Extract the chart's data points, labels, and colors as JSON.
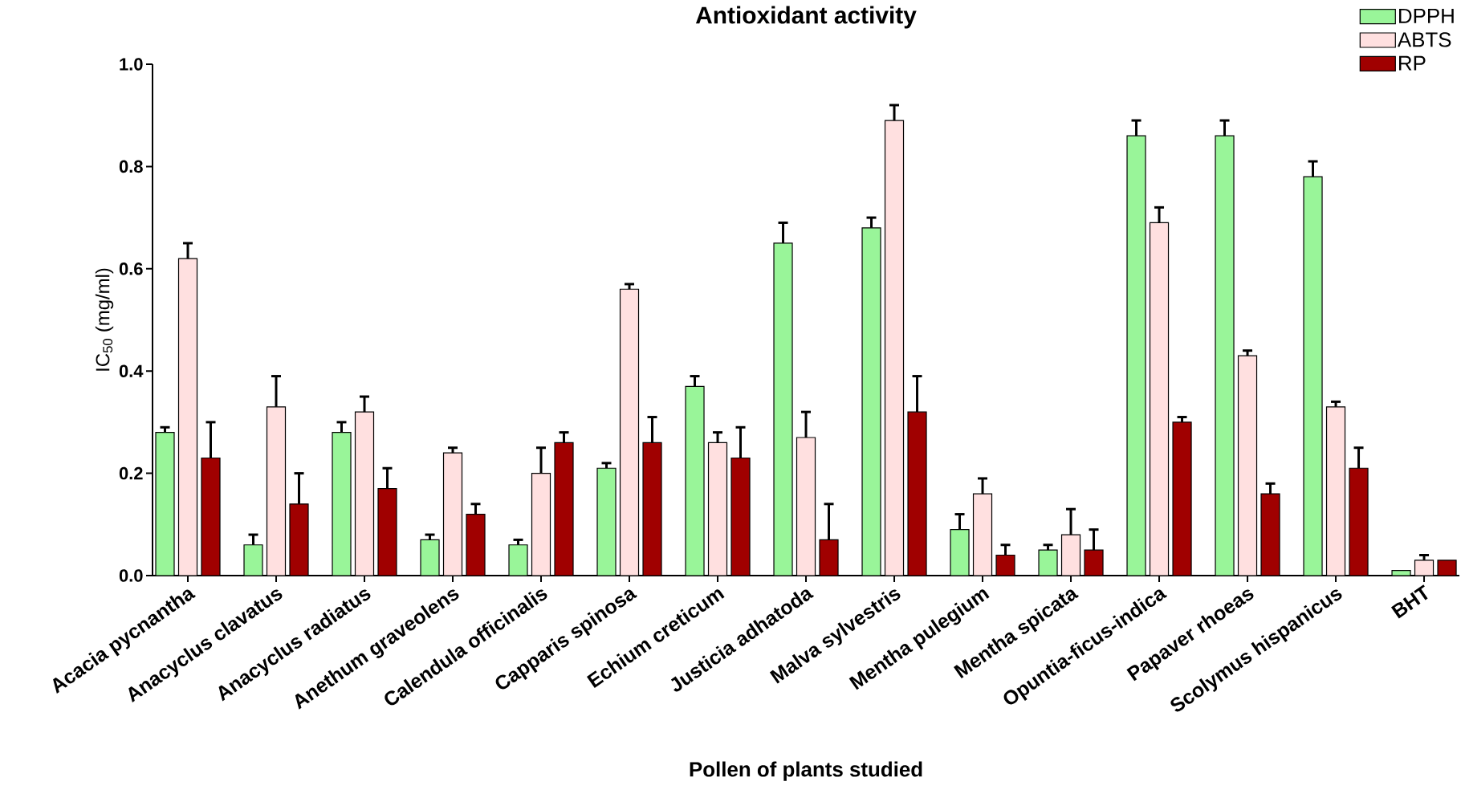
{
  "chart_data": {
    "type": "bar",
    "title": "Antioxidant activity",
    "xlabel": "Pollen of plants studied",
    "ylabel": "IC$_{50}$ (mg/ml)",
    "categories": [
      "Acacia pycnantha",
      "Anacyclus clavatus",
      "Anacyclus radiatus",
      "Anethum graveolens",
      "Calendula officinalis",
      "Capparis spinosa",
      "Echium creticum",
      "Justicia adhatoda",
      "Malva sylvestris",
      "Mentha pulegium",
      "Mentha spicata",
      "Opuntia-ficus-indica",
      "Papaver rhoeas",
      "Scolymus hispanicus",
      "BHT"
    ],
    "series": [
      {
        "name": "DPPH",
        "color": "#99f599",
        "values": [
          0.28,
          0.06,
          0.28,
          0.07,
          0.06,
          0.21,
          0.37,
          0.65,
          0.68,
          0.09,
          0.05,
          0.86,
          0.86,
          0.78,
          0.01
        ],
        "errors": [
          [
            0.28,
            0.29
          ],
          [
            0.06,
            0.08
          ],
          [
            0.28,
            0.3
          ],
          [
            0.07,
            0.08
          ],
          [
            0.06,
            0.07
          ],
          [
            0.21,
            0.22
          ],
          [
            0.37,
            0.39
          ],
          [
            0.65,
            0.69
          ],
          [
            0.68,
            0.7
          ],
          [
            0.09,
            0.12
          ],
          [
            0.05,
            0.06
          ],
          [
            0.86,
            0.89
          ],
          [
            0.86,
            0.89
          ],
          [
            0.78,
            0.81
          ],
          null
        ]
      },
      {
        "name": "ABTS",
        "color": "#ffe0e0",
        "values": [
          0.62,
          0.33,
          0.32,
          0.24,
          0.2,
          0.56,
          0.26,
          0.27,
          0.89,
          0.16,
          0.08,
          0.69,
          0.43,
          0.33,
          0.03
        ],
        "errors": [
          [
            0.62,
            0.65
          ],
          [
            0.33,
            0.39
          ],
          [
            0.32,
            0.35
          ],
          [
            0.24,
            0.25
          ],
          [
            0.2,
            0.25
          ],
          [
            0.56,
            0.57
          ],
          [
            0.26,
            0.28
          ],
          [
            0.27,
            0.32
          ],
          [
            0.89,
            0.92
          ],
          [
            0.16,
            0.19
          ],
          [
            0.08,
            0.13
          ],
          [
            0.69,
            0.72
          ],
          [
            0.43,
            0.44
          ],
          [
            0.33,
            0.34
          ],
          [
            0.03,
            0.04
          ]
        ]
      },
      {
        "name": "RP",
        "color": "#a00000",
        "values": [
          0.23,
          0.14,
          0.17,
          0.12,
          0.26,
          0.26,
          0.23,
          0.07,
          0.32,
          0.04,
          0.05,
          0.3,
          0.16,
          0.21,
          0.03
        ],
        "errors": [
          [
            0.23,
            0.3
          ],
          [
            0.14,
            0.2
          ],
          [
            0.17,
            0.21
          ],
          [
            0.12,
            0.14
          ],
          [
            0.26,
            0.28
          ],
          [
            0.26,
            0.31
          ],
          [
            0.23,
            0.29
          ],
          [
            0.07,
            0.14
          ],
          [
            0.32,
            0.39
          ],
          [
            0.04,
            0.06
          ],
          [
            0.05,
            0.09
          ],
          [
            0.3,
            0.31
          ],
          [
            0.16,
            0.18
          ],
          [
            0.21,
            0.25
          ],
          null
        ]
      }
    ],
    "ylim": [
      0,
      1
    ],
    "yticks": [
      {
        "value": 0,
        "label": "0.0"
      },
      0.2,
      0.4,
      0.6,
      0.8,
      {
        "value": 1,
        "label": "1.0"
      }
    ],
    "legend": "top right",
    "grid": false
  }
}
